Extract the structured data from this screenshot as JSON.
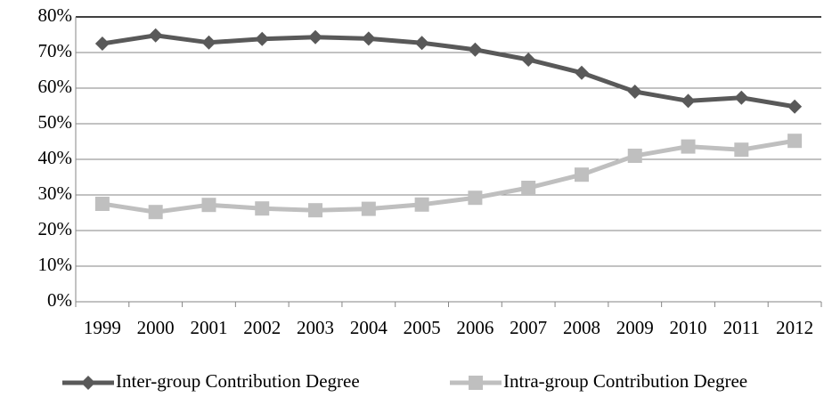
{
  "chart_data": {
    "type": "line",
    "categories": [
      "1999",
      "2000",
      "2001",
      "2002",
      "2003",
      "2004",
      "2005",
      "2006",
      "2007",
      "2008",
      "2009",
      "2010",
      "2011",
      "2012"
    ],
    "series": [
      {
        "name": "Inter-group Contribution Degree",
        "color": "#595959",
        "marker": "diamond",
        "values": [
          72.5,
          74.8,
          72.8,
          73.8,
          74.3,
          73.9,
          72.7,
          70.8,
          68,
          64.3,
          59,
          56.4,
          57.3,
          54.8
        ]
      },
      {
        "name": "Intra-group Contribution Degree",
        "color": "#bfbfbf",
        "marker": "square",
        "values": [
          27.5,
          25.2,
          27.2,
          26.2,
          25.7,
          26.1,
          27.3,
          29.2,
          32,
          35.7,
          41,
          43.6,
          42.7,
          45.2
        ]
      }
    ],
    "ylim": [
      0,
      80
    ],
    "yticks": [
      {
        "value": 0,
        "label": "0%"
      },
      {
        "value": 10,
        "label": "10%"
      },
      {
        "value": 20,
        "label": "20%"
      },
      {
        "value": 30,
        "label": "30%"
      },
      {
        "value": 40,
        "label": "40%"
      },
      {
        "value": 50,
        "label": "50%"
      },
      {
        "value": 60,
        "label": "60%"
      },
      {
        "value": 70,
        "label": "70%"
      },
      {
        "value": 80,
        "label": "80%"
      }
    ],
    "grid": true,
    "legend": "bottom"
  }
}
